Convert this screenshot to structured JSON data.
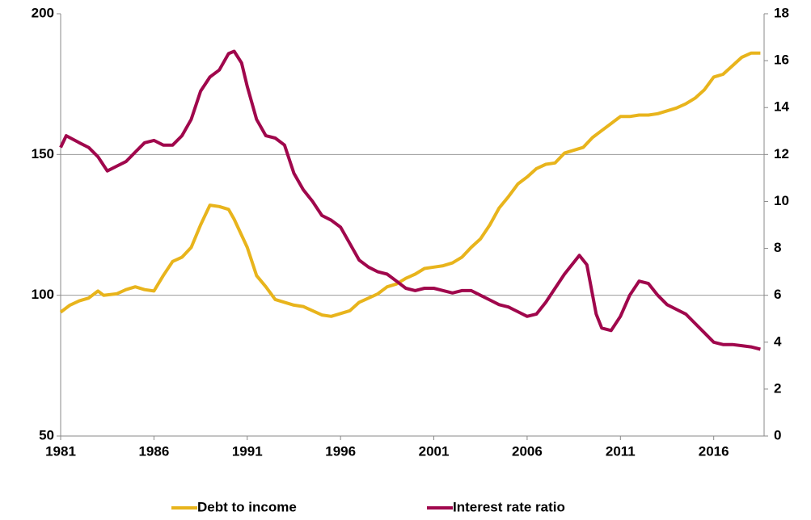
{
  "chart_data": {
    "type": "line",
    "xlim": [
      1981,
      2018.7
    ],
    "xticks": [
      1981,
      1986,
      1991,
      1996,
      2001,
      2006,
      2011,
      2016
    ],
    "ylim": [
      50,
      200
    ],
    "yticks": [
      50,
      100,
      150,
      200
    ],
    "y2lim": [
      0,
      18
    ],
    "y2ticks": [
      0,
      2,
      4,
      6,
      8,
      10,
      12,
      14,
      16,
      18
    ],
    "grid": true,
    "legend": "bottom",
    "series": [
      {
        "name": "Debt to income",
        "color": "#E8B41C",
        "x": [
          1981,
          1981.5,
          1982,
          1982.5,
          1983,
          1983.3,
          1984,
          1984.5,
          1985,
          1985.5,
          1986,
          1986.5,
          1987,
          1987.5,
          1988,
          1988.5,
          1989,
          1989.5,
          1990,
          1990.3,
          1991,
          1991.5,
          1992,
          1992.5,
          1993,
          1993.5,
          1994,
          1995,
          1995.5,
          1996,
          1996.5,
          1997,
          1997.5,
          1998,
          1998.5,
          1999,
          1999.5,
          2000,
          2000.5,
          2001,
          2001.5,
          2002,
          2002.5,
          2003,
          2003.5,
          2004,
          2004.5,
          2005,
          2005.5,
          2006,
          2006.5,
          2007,
          2007.5,
          2008,
          2008.5,
          2009,
          2009.5,
          2010,
          2010.5,
          2011,
          2011.5,
          2012,
          2012.5,
          2013,
          2013.5,
          2014,
          2014.5,
          2015,
          2015.5,
          2016,
          2016.5,
          2017,
          2017.5,
          2018,
          2018.5
        ],
        "values": [
          94,
          96.5,
          98,
          99,
          101.5,
          100,
          100.5,
          102,
          103,
          102,
          101.5,
          107,
          112,
          113.5,
          117,
          125,
          132,
          131.5,
          130.5,
          127,
          117,
          107,
          103,
          98.5,
          97.5,
          96.5,
          96,
          93,
          92.5,
          93.5,
          94.5,
          97.5,
          99,
          100.5,
          103,
          104,
          106,
          107.5,
          109.5,
          110,
          110.5,
          111.5,
          113.5,
          117,
          120,
          125,
          131,
          135,
          139.5,
          142,
          145,
          146.5,
          147,
          150.5,
          151.5,
          152.5,
          156,
          158.5,
          161,
          163.5,
          163.5,
          164,
          164,
          164.5,
          165.5,
          166.5,
          168,
          170,
          173,
          177.5,
          178.5,
          181.5,
          184.5,
          186,
          186
        ]
      },
      {
        "name": "Interest rate ratio",
        "color": "#A0074C",
        "axis": "y2",
        "x": [
          1981,
          1981.3,
          1982,
          1982.5,
          1983,
          1983.5,
          1984,
          1984.5,
          1985,
          1985.5,
          1986,
          1986.5,
          1987,
          1987.5,
          1988,
          1988.5,
          1989,
          1989.5,
          1990,
          1990.3,
          1990.7,
          1991,
          1991.5,
          1992,
          1992.5,
          1993,
          1993.5,
          1994,
          1994.5,
          1995,
          1995.5,
          1996,
          1996.5,
          1997,
          1997.5,
          1998,
          1998.5,
          1999,
          1999.5,
          2000,
          2000.5,
          2001,
          2001.5,
          2002,
          2002.5,
          2003,
          2003.5,
          2004,
          2004.5,
          2005,
          2005.5,
          2006,
          2006.5,
          2007,
          2007.5,
          2008,
          2008.5,
          2008.8,
          2009.2,
          2009.7,
          2010,
          2010.5,
          2011,
          2011.5,
          2012,
          2012.5,
          2013,
          2013.5,
          2014,
          2014.5,
          2015,
          2015.5,
          2016,
          2016.5,
          2017,
          2017.5,
          2018,
          2018.5
        ],
        "values": [
          12.3,
          12.8,
          12.5,
          12.3,
          11.9,
          11.3,
          11.5,
          11.7,
          12.1,
          12.5,
          12.6,
          12.4,
          12.4,
          12.8,
          13.5,
          14.7,
          15.3,
          15.6,
          16.3,
          16.4,
          15.9,
          14.9,
          13.5,
          12.8,
          12.7,
          12.4,
          11.2,
          10.5,
          10.0,
          9.4,
          9.2,
          8.9,
          8.2,
          7.5,
          7.2,
          7.0,
          6.9,
          6.6,
          6.3,
          6.2,
          6.3,
          6.3,
          6.2,
          6.1,
          6.2,
          6.2,
          6.0,
          5.8,
          5.6,
          5.5,
          5.3,
          5.1,
          5.2,
          5.7,
          6.3,
          6.9,
          7.4,
          7.7,
          7.3,
          5.2,
          4.6,
          4.5,
          5.1,
          6.0,
          6.6,
          6.5,
          6.0,
          5.6,
          5.4,
          5.2,
          4.8,
          4.4,
          4.0,
          3.9,
          3.9,
          3.85,
          3.8,
          3.7
        ]
      }
    ]
  }
}
